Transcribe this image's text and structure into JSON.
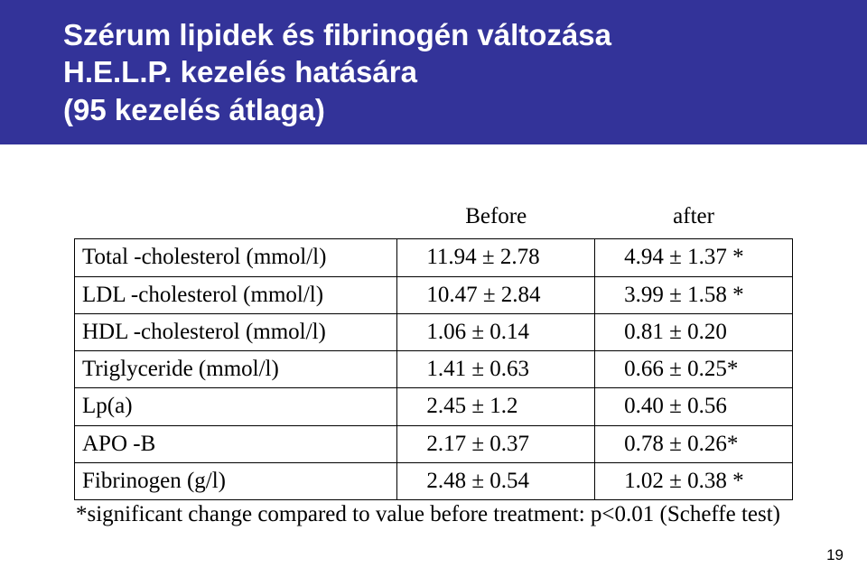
{
  "header": {
    "title_line1": "Szérum lipidek és fibrinogén változása",
    "title_line2": "H.E.L.P. kezelés hatására",
    "title_line3": "(95 kezelés átlaga)",
    "band_color": "#333399",
    "title_color": "#ffffff",
    "title_fontsize_pt": 25
  },
  "table": {
    "border_color": "#000000",
    "font_family": "Times New Roman",
    "cell_fontsize_pt": 19,
    "columns": [
      "",
      "Before",
      "after"
    ],
    "rows": [
      {
        "label": "Total -cholesterol (mmol/l)",
        "before": "11.94 ± 2.78",
        "after": "4.94 ± 1.37 *"
      },
      {
        "label": "LDL -cholesterol (mmol/l)",
        "before": "10.47 ± 2.84",
        "after": "3.99 ± 1.58 *"
      },
      {
        "label": "HDL -cholesterol (mmol/l)",
        "before": "1.06 ± 0.14",
        "after": "0.81 ± 0.20"
      },
      {
        "label": "Triglyceride (mmol/l)",
        "before": "1.41 ± 0.63",
        "after": "0.66 ± 0.25*"
      },
      {
        "label": "Lp(a)",
        "before": "2.45 ± 1.2",
        "after": "0.40 ± 0.56"
      },
      {
        "label": "APO -B",
        "before": "2.17 ± 0.37",
        "after": "0.78 ± 0.26*"
      },
      {
        "label": "Fibrinogen (g/l)",
        "before": "2.48 ± 0.54",
        "after": "1.02 ± 0.38 *"
      }
    ],
    "footnote": "*significant change compared to value before treatment: p<0.01 (Scheffe test)"
  },
  "page_number": "19"
}
